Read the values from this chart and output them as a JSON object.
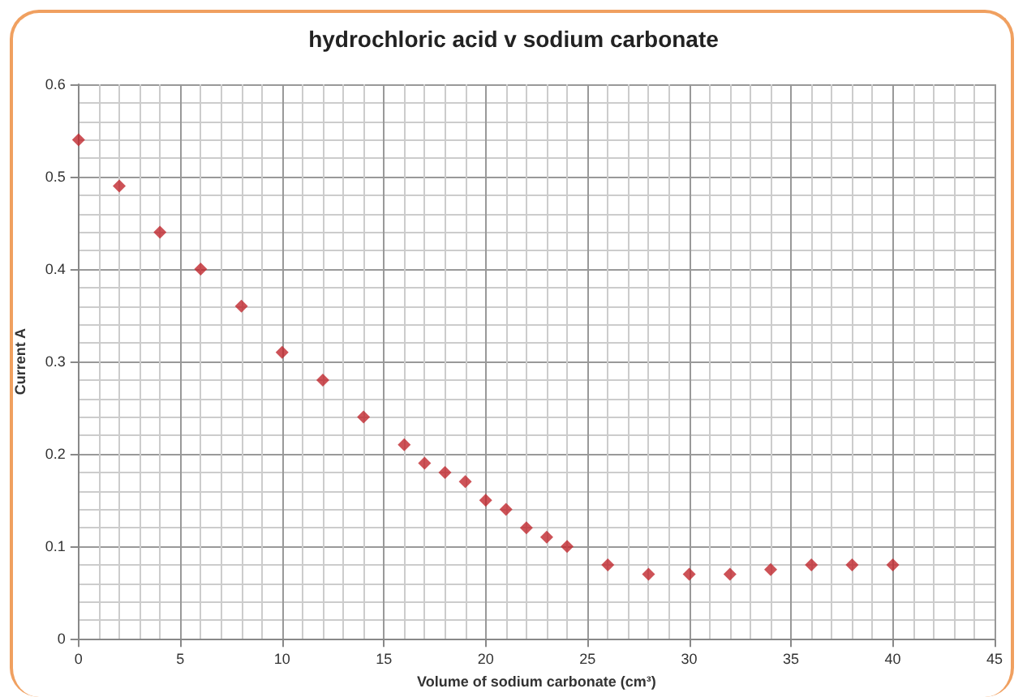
{
  "chart_data": {
    "type": "scatter",
    "title": "hydrochloric acid v sodium carbonate",
    "xlabel": "Volume of sodium carbonate (cm³)",
    "ylabel": "Current A",
    "x": [
      0,
      2,
      4,
      6,
      8,
      10,
      12,
      14,
      16,
      17,
      18,
      19,
      20,
      21,
      22,
      23,
      24,
      26,
      28,
      30,
      32,
      34,
      36,
      38,
      40
    ],
    "series": [
      {
        "color": "#c0272d",
        "values": [
          0.54,
          0.49,
          0.44,
          0.4,
          0.36,
          0.31,
          0.28,
          0.24,
          0.21,
          0.19,
          0.18,
          0.17,
          0.15,
          0.14,
          0.12,
          0.11,
          0.1,
          0.08,
          0.07,
          0.07,
          0.07,
          0.075,
          0.08,
          0.08,
          0.08
        ]
      }
    ],
    "xlim": [
      0,
      45
    ],
    "xticks": [
      0,
      5,
      10,
      15,
      20,
      25,
      30,
      35,
      40,
      45
    ],
    "ylim": [
      0,
      0.6
    ],
    "yticks": [
      0,
      0.1,
      0.2,
      0.3,
      0.4,
      0.5,
      0.6
    ],
    "grid": true,
    "marker": "diamond"
  }
}
